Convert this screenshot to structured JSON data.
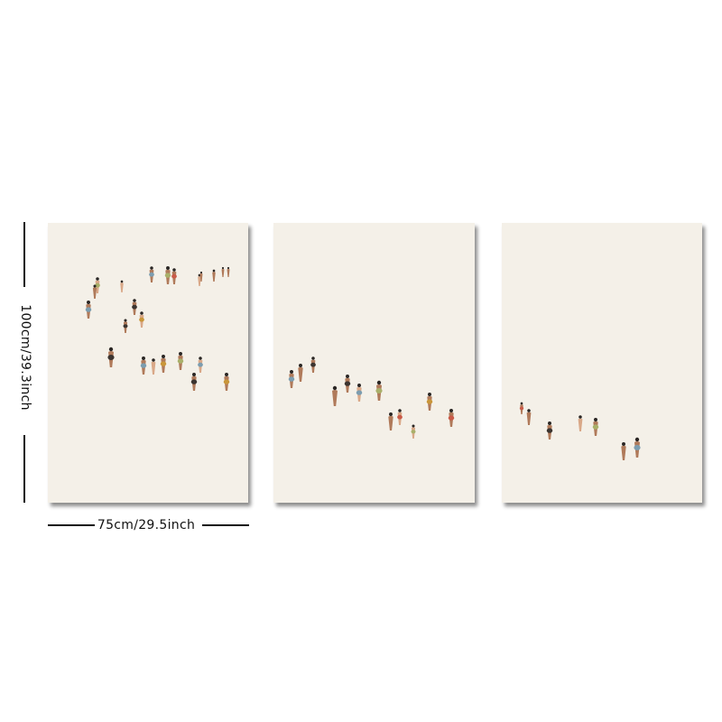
{
  "dimensions": {
    "height_label": "100cm/39.3inch",
    "width_label": "75cm/29.5inch"
  },
  "artwork": {
    "subject": "minimalist beach figures",
    "panel_count": 3,
    "colors": {
      "canvas": "#f4f0e8",
      "skin_light": "#d9a888",
      "skin_dark": "#b07a5a",
      "hair": "#2a2624",
      "swim_blue": "#7c9db0",
      "swim_olive": "#a9b06a",
      "swim_mustard": "#c9963a",
      "swim_brown": "#3b3430",
      "swim_red": "#c95a48"
    }
  }
}
